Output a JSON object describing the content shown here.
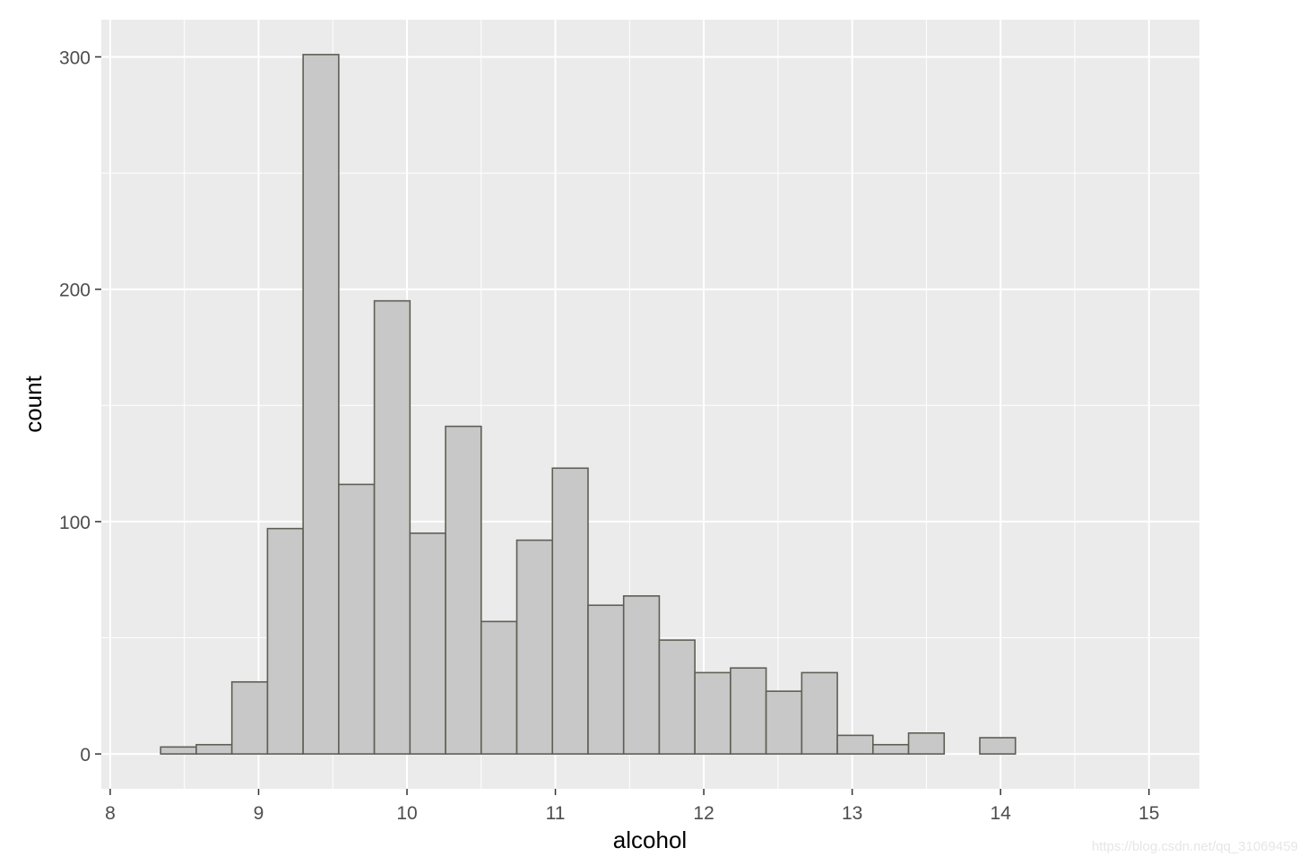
{
  "chart_data": {
    "type": "bar",
    "subtype": "histogram",
    "xlabel": "alcohol",
    "ylabel": "count",
    "xlim": [
      7.94,
      15.34
    ],
    "ylim": [
      -15,
      316
    ],
    "x_ticks": [
      8,
      9,
      10,
      11,
      12,
      13,
      14,
      15
    ],
    "y_ticks": [
      0,
      100,
      200,
      300
    ],
    "grid": true,
    "bins": [
      {
        "x0": 8.1,
        "x1": 8.34,
        "count": 0
      },
      {
        "x0": 8.34,
        "x1": 8.58,
        "count": 3
      },
      {
        "x0": 8.58,
        "x1": 8.82,
        "count": 4
      },
      {
        "x0": 8.82,
        "x1": 9.06,
        "count": 31
      },
      {
        "x0": 9.06,
        "x1": 9.3,
        "count": 97
      },
      {
        "x0": 9.3,
        "x1": 9.54,
        "count": 301
      },
      {
        "x0": 9.54,
        "x1": 9.78,
        "count": 116
      },
      {
        "x0": 9.78,
        "x1": 10.02,
        "count": 195
      },
      {
        "x0": 10.02,
        "x1": 10.26,
        "count": 95
      },
      {
        "x0": 10.26,
        "x1": 10.5,
        "count": 141
      },
      {
        "x0": 10.5,
        "x1": 10.74,
        "count": 57
      },
      {
        "x0": 10.74,
        "x1": 10.98,
        "count": 92
      },
      {
        "x0": 10.98,
        "x1": 11.22,
        "count": 123
      },
      {
        "x0": 11.22,
        "x1": 11.46,
        "count": 64
      },
      {
        "x0": 11.46,
        "x1": 11.7,
        "count": 68
      },
      {
        "x0": 11.7,
        "x1": 11.94,
        "count": 49
      },
      {
        "x0": 11.94,
        "x1": 12.18,
        "count": 35
      },
      {
        "x0": 12.18,
        "x1": 12.42,
        "count": 37
      },
      {
        "x0": 12.42,
        "x1": 12.66,
        "count": 27
      },
      {
        "x0": 12.66,
        "x1": 12.9,
        "count": 35
      },
      {
        "x0": 12.9,
        "x1": 13.14,
        "count": 8
      },
      {
        "x0": 13.14,
        "x1": 13.38,
        "count": 4
      },
      {
        "x0": 13.38,
        "x1": 13.62,
        "count": 9
      },
      {
        "x0": 13.62,
        "x1": 13.86,
        "count": 0
      },
      {
        "x0": 13.86,
        "x1": 14.1,
        "count": 7
      },
      {
        "x0": 14.1,
        "x1": 14.34,
        "count": 0
      },
      {
        "x0": 14.34,
        "x1": 14.58,
        "count": 0
      },
      {
        "x0": 14.58,
        "x1": 14.82,
        "count": 0
      }
    ],
    "colors": {
      "panel_background": "#ebebeb",
      "grid": "#ffffff",
      "bar_fill": "#c8c8c8",
      "bar_outline": "#5f5f55"
    }
  },
  "watermark": "https://blog.csdn.net/qq_31069459"
}
